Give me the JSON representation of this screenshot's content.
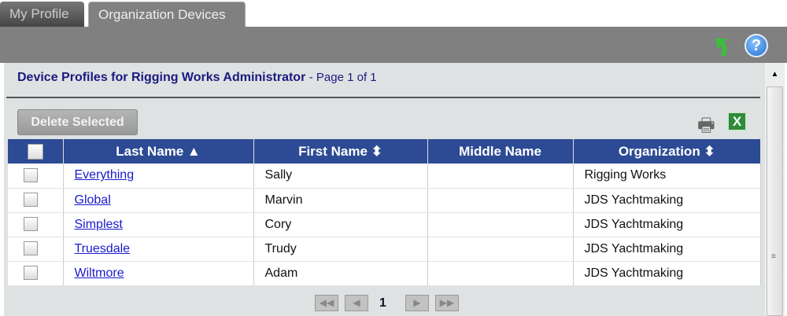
{
  "tabs": [
    {
      "label": "My Profile"
    },
    {
      "label": "Organization Devices"
    }
  ],
  "header": {
    "title": "Device Profiles for Rigging Works Administrator",
    "page_info": "- Page 1 of 1"
  },
  "toolbar": {
    "delete_label": "Delete Selected"
  },
  "icons": {
    "back": "green-back-arrow-icon",
    "help": "?",
    "print": "printer-icon",
    "excel": "X"
  },
  "table": {
    "columns": [
      "Last Name ▲",
      "First Name ⬍",
      "Middle Name",
      "Organization ⬍"
    ],
    "rows": [
      {
        "last": "Everything",
        "first": "Sally",
        "middle": "",
        "org": "Rigging Works"
      },
      {
        "last": "Global",
        "first": "Marvin",
        "middle": "",
        "org": "JDS Yachtmaking"
      },
      {
        "last": "Simplest",
        "first": "Cory",
        "middle": "",
        "org": "JDS Yachtmaking"
      },
      {
        "last": "Truesdale",
        "first": "Trudy",
        "middle": "",
        "org": "JDS Yachtmaking"
      },
      {
        "last": "Wiltmore",
        "first": "Adam",
        "middle": "",
        "org": "JDS Yachtmaking"
      }
    ]
  },
  "pager": {
    "current": "1",
    "first": "◀◀",
    "prev": "◀",
    "next": "▶",
    "last": "▶▶"
  },
  "colors": {
    "header_blue": "#2c4b94",
    "panel": "#dee2e2",
    "toolbar": "#808080"
  }
}
